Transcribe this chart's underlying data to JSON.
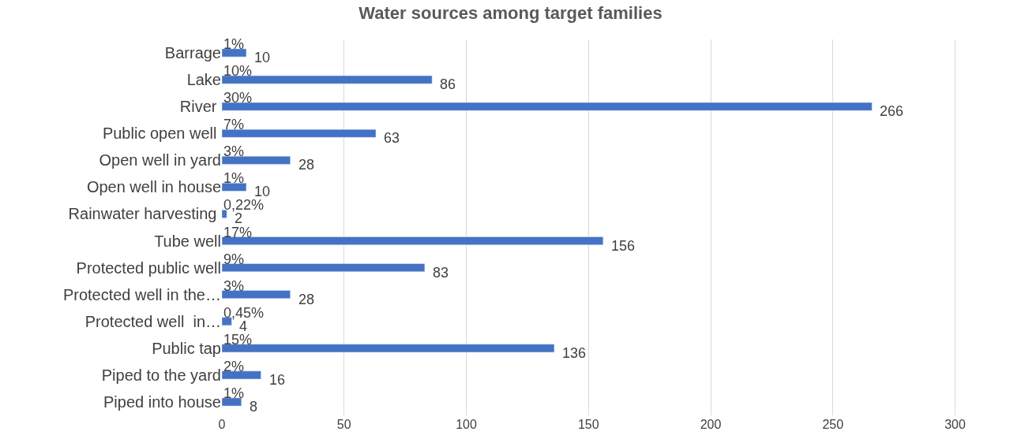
{
  "chart_data": {
    "type": "bar",
    "orientation": "horizontal",
    "title": "Water sources among target families",
    "categories": [
      "Barrage",
      "Lake",
      "River ",
      "Public open well ",
      "Open well in yard",
      "Open well in house",
      "Rainwater harvesting ",
      "Tube well",
      "Protected public well",
      "Protected well in the…",
      "Protected well  in…",
      "Public tap",
      "Piped to the yard",
      "Piped into house"
    ],
    "values": [
      10,
      86,
      266,
      63,
      28,
      10,
      2,
      156,
      83,
      28,
      4,
      136,
      16,
      8
    ],
    "annotations": [
      "1%",
      "10%",
      "30%",
      "7%",
      "3%",
      "1%",
      "0,22%",
      "17%",
      "9%",
      "3%",
      "0,45%",
      "15%",
      "2%",
      "1%"
    ],
    "data_labels": true,
    "color": "#4472c4",
    "xlim": [
      0,
      326
    ],
    "xticks": [
      0,
      50,
      100,
      150,
      200,
      250,
      300
    ],
    "grid": "x",
    "legend": false
  }
}
